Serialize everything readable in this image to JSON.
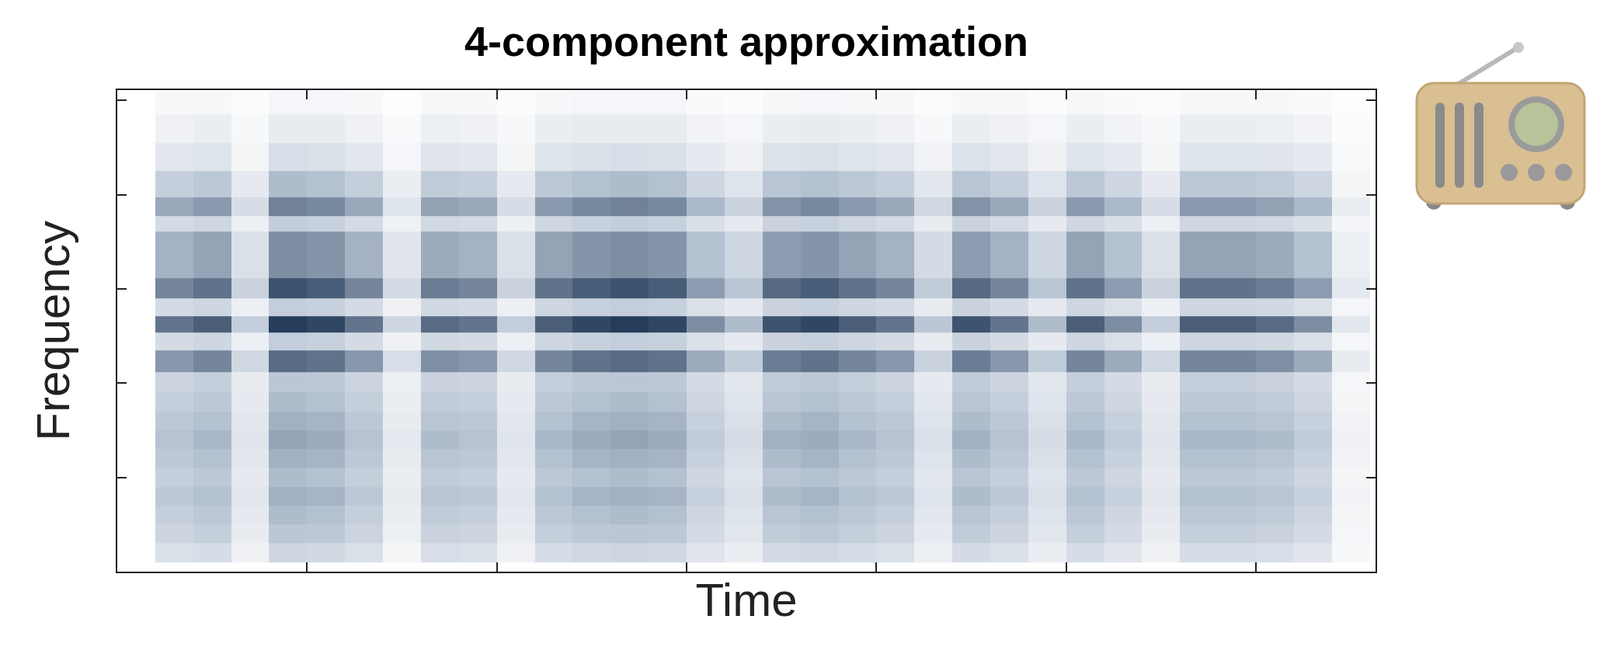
{
  "chart_data": {
    "type": "heatmap",
    "title": "4-component approximation",
    "x_label": "Time",
    "y_label": "Frequency",
    "x": [
      0.1,
      0.3,
      0.5,
      0.7,
      0.9,
      1.1,
      1.3,
      1.5,
      1.7,
      1.9,
      2.1,
      2.3,
      2.5,
      2.7,
      2.9,
      3.1,
      3.3,
      3.5,
      3.7,
      3.9,
      4.1,
      4.3,
      4.5,
      4.7,
      4.9,
      5.1,
      5.3,
      5.5,
      5.7,
      5.9,
      6.1,
      6.3,
      6.5
    ],
    "y": [
      0.2,
      0.4,
      0.6,
      0.8,
      1.0,
      1.2,
      1.4,
      1.6,
      1.8,
      2.0,
      2.24,
      2.45,
      2.62,
      2.8,
      3.0,
      3.23,
      3.52,
      3.7,
      3.85,
      4.1,
      4.4,
      4.7,
      5.0
    ],
    "cells": [
      [
        0,
        18,
        20,
        8,
        24,
        23,
        18,
        6,
        19,
        18,
        8,
        20,
        23,
        24,
        23,
        15,
        10,
        21,
        23,
        20,
        18,
        9,
        21,
        18,
        10,
        20,
        15,
        8,
        20,
        20,
        19,
        15,
        4
      ],
      [
        0,
        25,
        28,
        11,
        33,
        32,
        25,
        9,
        26,
        25,
        11,
        28,
        32,
        33,
        32,
        21,
        14,
        30,
        32,
        28,
        25,
        12,
        30,
        25,
        14,
        28,
        21,
        11,
        28,
        28,
        26,
        21,
        5
      ],
      [
        0,
        28,
        32,
        12,
        38,
        36,
        28,
        10,
        30,
        28,
        12,
        32,
        36,
        38,
        36,
        24,
        16,
        34,
        36,
        32,
        28,
        14,
        34,
        28,
        16,
        32,
        24,
        12,
        32,
        32,
        30,
        24,
        6
      ],
      [
        0,
        32,
        36,
        14,
        43,
        41,
        32,
        11,
        34,
        32,
        14,
        36,
        41,
        43,
        41,
        27,
        18,
        38,
        41,
        36,
        32,
        16,
        38,
        32,
        18,
        36,
        27,
        14,
        36,
        36,
        34,
        27,
        7
      ],
      [
        0,
        28,
        32,
        12,
        38,
        36,
        28,
        10,
        30,
        28,
        12,
        32,
        36,
        38,
        36,
        24,
        16,
        34,
        36,
        32,
        28,
        14,
        34,
        28,
        16,
        32,
        24,
        12,
        32,
        32,
        30,
        24,
        6
      ],
      [
        0,
        32,
        36,
        14,
        43,
        41,
        32,
        11,
        34,
        32,
        14,
        36,
        41,
        43,
        41,
        27,
        18,
        38,
        41,
        36,
        32,
        16,
        38,
        32,
        18,
        36,
        27,
        14,
        36,
        36,
        34,
        27,
        7
      ],
      [
        0,
        35,
        40,
        15,
        48,
        45,
        35,
        13,
        38,
        35,
        15,
        40,
        45,
        48,
        45,
        30,
        20,
        43,
        45,
        40,
        35,
        18,
        43,
        35,
        20,
        40,
        30,
        15,
        40,
        40,
        38,
        30,
        8
      ],
      [
        0,
        32,
        36,
        14,
        43,
        41,
        32,
        11,
        34,
        32,
        14,
        36,
        41,
        43,
        41,
        27,
        18,
        38,
        41,
        36,
        32,
        16,
        38,
        32,
        18,
        36,
        27,
        14,
        36,
        36,
        34,
        27,
        7
      ],
      [
        0,
        28,
        32,
        12,
        38,
        36,
        28,
        10,
        30,
        28,
        12,
        32,
        36,
        38,
        36,
        24,
        16,
        34,
        36,
        32,
        28,
        14,
        34,
        28,
        16,
        32,
        24,
        12,
        32,
        32,
        30,
        24,
        6
      ],
      [
        0,
        25,
        28,
        11,
        33,
        32,
        25,
        9,
        26,
        25,
        11,
        28,
        32,
        33,
        32,
        21,
        14,
        30,
        32,
        28,
        25,
        12,
        30,
        25,
        14,
        28,
        21,
        11,
        28,
        28,
        26,
        21,
        5
      ],
      [
        0,
        53,
        60,
        23,
        71,
        68,
        53,
        19,
        56,
        53,
        23,
        60,
        68,
        71,
        68,
        45,
        30,
        64,
        68,
        60,
        53,
        26,
        64,
        53,
        30,
        60,
        45,
        23,
        60,
        60,
        56,
        45,
        11
      ],
      [
        0,
        21,
        24,
        9,
        29,
        27,
        21,
        8,
        23,
        21,
        9,
        24,
        27,
        29,
        27,
        18,
        12,
        26,
        27,
        24,
        21,
        11,
        26,
        21,
        12,
        24,
        18,
        9,
        24,
        24,
        23,
        18,
        5
      ],
      [
        0,
        67,
        76,
        29,
        90,
        86,
        67,
        24,
        71,
        67,
        29,
        76,
        86,
        90,
        86,
        57,
        38,
        81,
        86,
        76,
        67,
        33,
        81,
        67,
        38,
        76,
        57,
        29,
        76,
        76,
        71,
        57,
        14
      ],
      [
        0,
        21,
        24,
        9,
        29,
        27,
        21,
        8,
        23,
        21,
        9,
        24,
        27,
        29,
        27,
        18,
        12,
        26,
        27,
        24,
        21,
        11,
        26,
        21,
        12,
        24,
        18,
        9,
        24,
        24,
        23,
        18,
        5
      ],
      [
        0,
        60,
        68,
        26,
        81,
        77,
        60,
        21,
        64,
        60,
        26,
        68,
        77,
        81,
        77,
        51,
        34,
        72,
        77,
        68,
        60,
        30,
        72,
        60,
        34,
        68,
        51,
        26,
        68,
        68,
        64,
        51,
        13
      ],
      [
        0,
        42,
        48,
        18,
        57,
        54,
        42,
        15,
        45,
        42,
        18,
        48,
        54,
        57,
        54,
        36,
        24,
        51,
        54,
        48,
        42,
        21,
        51,
        42,
        24,
        48,
        36,
        18,
        48,
        48,
        45,
        36,
        9
      ],
      [
        0,
        42,
        48,
        18,
        57,
        54,
        42,
        15,
        45,
        42,
        18,
        48,
        54,
        57,
        54,
        36,
        24,
        51,
        54,
        48,
        42,
        21,
        51,
        42,
        24,
        48,
        36,
        18,
        48,
        48,
        45,
        36,
        9
      ],
      [
        0,
        21,
        24,
        9,
        29,
        27,
        21,
        8,
        23,
        21,
        9,
        24,
        27,
        29,
        27,
        18,
        12,
        26,
        27,
        24,
        21,
        11,
        26,
        21,
        12,
        24,
        18,
        9,
        24,
        24,
        23,
        18,
        5
      ],
      [
        0,
        46,
        52,
        20,
        62,
        59,
        46,
        16,
        49,
        46,
        20,
        52,
        59,
        62,
        59,
        39,
        26,
        55,
        59,
        52,
        46,
        23,
        55,
        46,
        26,
        52,
        39,
        20,
        52,
        52,
        49,
        39,
        10
      ],
      [
        0,
        28,
        32,
        12,
        38,
        36,
        28,
        10,
        30,
        28,
        12,
        32,
        36,
        38,
        36,
        24,
        16,
        34,
        36,
        32,
        28,
        14,
        34,
        28,
        16,
        32,
        24,
        12,
        32,
        32,
        30,
        24,
        6
      ],
      [
        0,
        14,
        16,
        6,
        19,
        18,
        14,
        5,
        15,
        14,
        6,
        16,
        18,
        19,
        18,
        12,
        8,
        17,
        18,
        16,
        14,
        7,
        17,
        14,
        8,
        16,
        12,
        6,
        16,
        16,
        15,
        12,
        3
      ],
      [
        0,
        8,
        10,
        4,
        11,
        11,
        8,
        3,
        9,
        8,
        4,
        10,
        11,
        11,
        11,
        7,
        5,
        10,
        11,
        10,
        8,
        4,
        10,
        8,
        5,
        10,
        7,
        4,
        10,
        10,
        9,
        7,
        2
      ],
      [
        0,
        4,
        4,
        2,
        5,
        5,
        4,
        1,
        4,
        4,
        2,
        4,
        5,
        5,
        5,
        3,
        2,
        4,
        5,
        4,
        4,
        2,
        4,
        4,
        2,
        4,
        3,
        2,
        4,
        4,
        4,
        3,
        1
      ]
    ],
    "zlim": [
      0,
      100
    ],
    "xlim": [
      0,
      6.63
    ],
    "xticks": [
      1,
      2,
      3,
      4,
      5,
      6
    ],
    "ylim": [
      0,
      5.11
    ],
    "yticks": [
      1,
      2,
      3,
      4,
      5
    ],
    "tick_labels": false,
    "color": "#0b2545"
  }
}
